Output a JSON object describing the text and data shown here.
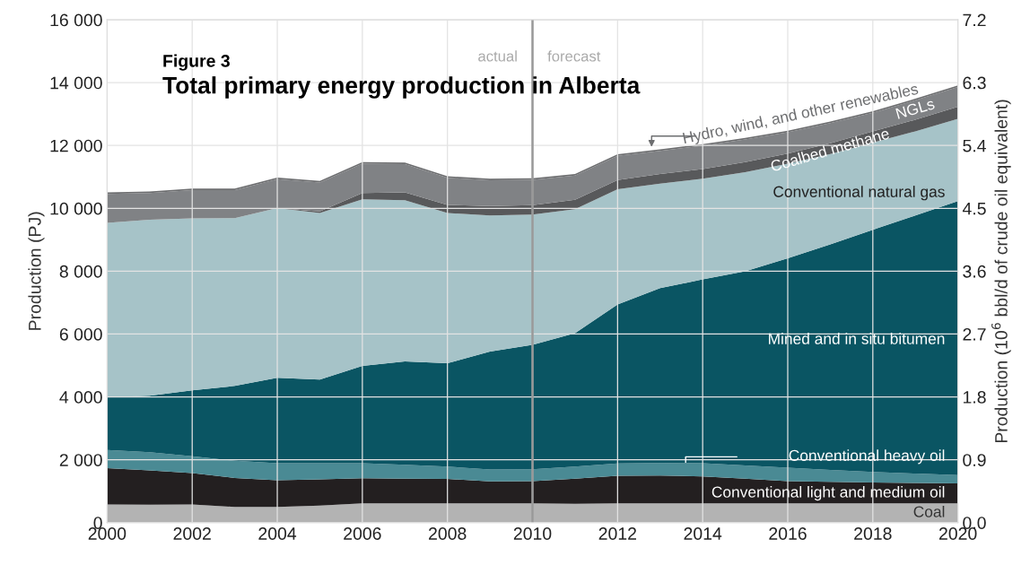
{
  "chart_data": {
    "type": "area",
    "stacked": true,
    "title": "Figure 3",
    "subtitle": "Total primary energy production in Alberta",
    "ylabel": "Production (PJ)",
    "y2label": "Production (10$^{6}$ bbl/d of crude oil equivalent)",
    "x": [
      2000,
      2001,
      2002,
      2003,
      2004,
      2005,
      2006,
      2007,
      2008,
      2009,
      2010,
      2011,
      2012,
      2013,
      2014,
      2015,
      2016,
      2017,
      2018,
      2019,
      2020
    ],
    "series": [
      {
        "name": "Coal",
        "color": "#b3b3b3",
        "values": [
          580,
          570,
          580,
          500,
          500,
          540,
          610,
          610,
          610,
          610,
          610,
          600,
          610,
          610,
          610,
          610,
          610,
          610,
          610,
          610,
          610
        ]
      },
      {
        "name": "Conventional light and medium oil",
        "color": "#231f20",
        "values": [
          1150,
          1090,
          1000,
          920,
          850,
          840,
          800,
          790,
          780,
          700,
          710,
          800,
          880,
          890,
          860,
          790,
          710,
          690,
          670,
          650,
          640
        ]
      },
      {
        "name": "Conventional heavy oil",
        "color": "#4a8a94",
        "values": [
          580,
          580,
          530,
          550,
          540,
          510,
          480,
          440,
          390,
          380,
          380,
          380,
          390,
          400,
          420,
          420,
          430,
          380,
          330,
          300,
          260
        ]
      },
      {
        "name": "Mined and in situ bitumen",
        "color": "#0a5563",
        "values": [
          1680,
          1800,
          2100,
          2380,
          2720,
          2660,
          3100,
          3290,
          3290,
          3750,
          3960,
          4250,
          5060,
          5560,
          5850,
          6180,
          6660,
          7170,
          7710,
          8210,
          8720
        ]
      },
      {
        "name": "Conventional natural gas",
        "color": "#a6c3c8",
        "values": [
          5550,
          5600,
          5470,
          5340,
          5400,
          5300,
          5300,
          5130,
          4780,
          4330,
          4140,
          3940,
          3670,
          3330,
          3200,
          3150,
          3010,
          2880,
          2770,
          2680,
          2620
        ]
      },
      {
        "name": "Coalbed methane",
        "color": "#58595b",
        "values": [
          0,
          0,
          0,
          0,
          0,
          50,
          200,
          250,
          260,
          300,
          300,
          300,
          290,
          300,
          310,
          320,
          320,
          340,
          360,
          370,
          380
        ]
      },
      {
        "name": "NGLs",
        "color": "#808285",
        "values": [
          920,
          850,
          900,
          890,
          920,
          920,
          930,
          900,
          860,
          820,
          810,
          770,
          770,
          740,
          740,
          720,
          680,
          640,
          590,
          620,
          630
        ]
      },
      {
        "name": "Hydro, wind, and other renewables",
        "color": "#6d6e70",
        "values": [
          50,
          50,
          50,
          50,
          50,
          50,
          50,
          50,
          50,
          50,
          50,
          50,
          50,
          50,
          50,
          50,
          50,
          50,
          50,
          50,
          50
        ]
      }
    ],
    "xlim": [
      2000,
      2020
    ],
    "xticks": [
      2000,
      2002,
      2004,
      2006,
      2008,
      2010,
      2012,
      2014,
      2016,
      2018,
      2020
    ],
    "ylim": [
      0,
      16000
    ],
    "yticks": [
      0,
      {
        "value": 2000,
        "label": "2 000"
      },
      {
        "value": 4000,
        "label": "4 000"
      },
      {
        "value": 6000,
        "label": "6 000"
      },
      {
        "value": 8000,
        "label": "8 000"
      },
      {
        "value": 10000,
        "label": "10 000"
      },
      {
        "value": 12000,
        "label": "12 000"
      },
      {
        "value": 14000,
        "label": "14 000"
      },
      {
        "value": 16000,
        "label": "16 000"
      }
    ],
    "y2lim": [
      0,
      7.2
    ],
    "y2ticks": [
      {
        "value": 0,
        "label": "0.0"
      },
      0.9,
      1.8,
      2.7,
      3.6,
      4.5,
      5.4,
      6.3,
      7.2
    ],
    "ref_lines": [
      {
        "axis": "x",
        "value": 2010,
        "color": "#999999"
      }
    ],
    "annotations": [
      {
        "text": "actual",
        "x": 2010,
        "y": 14800
      },
      {
        "text": "forecast",
        "x": 2010,
        "y": 14800
      }
    ],
    "grid": true,
    "legend": false
  }
}
